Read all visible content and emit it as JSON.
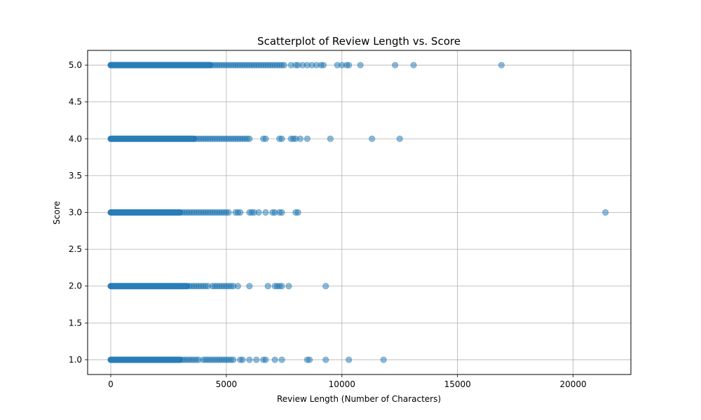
{
  "chart_data": {
    "type": "scatter",
    "title": "Scatterplot of Review Length vs. Score",
    "xlabel": "Review Length (Number of Characters)",
    "ylabel": "Score",
    "xlim": [
      -1000,
      22500
    ],
    "ylim": [
      0.8,
      5.2
    ],
    "xticks": [
      0,
      5000,
      10000,
      15000,
      20000
    ],
    "xtick_labels": [
      "0",
      "5000",
      "10000",
      "15000",
      "20000"
    ],
    "yticks": [
      1.0,
      1.5,
      2.0,
      2.5,
      3.0,
      3.5,
      4.0,
      4.5,
      5.0
    ],
    "ytick_labels": [
      "1.0",
      "1.5",
      "2.0",
      "2.5",
      "3.0",
      "3.5",
      "4.0",
      "4.5",
      "5.0"
    ],
    "grid": true,
    "marker_color": "#1f77b4",
    "marker_alpha": 0.5,
    "dense_ranges": [
      {
        "score": 5,
        "from": 0,
        "to": 4300
      },
      {
        "score": 4,
        "from": 0,
        "to": 3600
      },
      {
        "score": 3,
        "from": 0,
        "to": 3000
      },
      {
        "score": 2,
        "from": 0,
        "to": 3300
      },
      {
        "score": 1,
        "from": 0,
        "to": 3000
      }
    ],
    "points": [
      {
        "score": 5,
        "x": [
          4400,
          4500,
          4600,
          4700,
          4800,
          4900,
          5000,
          5100,
          5200,
          5300,
          5400,
          5500,
          5600,
          5700,
          5800,
          5900,
          6000,
          6100,
          6200,
          6300,
          6400,
          6500,
          6600,
          6700,
          6800,
          6900,
          7000,
          7100,
          7200,
          7300,
          7400,
          7500,
          7800,
          8000,
          8100,
          8300,
          8500,
          8700,
          8900,
          9100,
          9200,
          9800,
          10000,
          10200,
          10300,
          10800,
          12300,
          13100,
          16900
        ]
      },
      {
        "score": 4,
        "x": [
          3700,
          3800,
          3900,
          4000,
          4100,
          4200,
          4300,
          4400,
          4500,
          4600,
          4700,
          4800,
          4900,
          5000,
          5100,
          5200,
          5300,
          5400,
          5500,
          5600,
          5700,
          5800,
          5900,
          6000,
          6600,
          6700,
          7300,
          7400,
          7800,
          7900,
          8000,
          8200,
          8500,
          9500,
          11300,
          12500
        ]
      },
      {
        "score": 3,
        "x": [
          3100,
          3200,
          3300,
          3400,
          3500,
          3600,
          3700,
          3800,
          3900,
          4000,
          4100,
          4200,
          4300,
          4400,
          4500,
          4600,
          4700,
          4800,
          4900,
          5000,
          5100,
          5400,
          5500,
          5600,
          6000,
          6100,
          6200,
          6400,
          6700,
          7000,
          7100,
          7300,
          7400,
          8000,
          8100,
          21400
        ]
      },
      {
        "score": 2,
        "x": [
          3400,
          3500,
          3600,
          3700,
          3800,
          3900,
          4000,
          4100,
          4200,
          4400,
          4500,
          4600,
          4700,
          4800,
          4900,
          5000,
          5100,
          5200,
          5300,
          5500,
          6000,
          6800,
          7100,
          7200,
          7300,
          7400,
          7700,
          9300
        ]
      },
      {
        "score": 1,
        "x": [
          3100,
          3200,
          3300,
          3400,
          3500,
          3600,
          3700,
          3800,
          4000,
          4100,
          4200,
          4300,
          4400,
          4500,
          4600,
          4700,
          4800,
          4900,
          5000,
          5100,
          5200,
          5300,
          5600,
          5700,
          6000,
          6300,
          6600,
          6700,
          7100,
          7400,
          8500,
          8600,
          9300,
          10300,
          11800
        ]
      }
    ]
  }
}
